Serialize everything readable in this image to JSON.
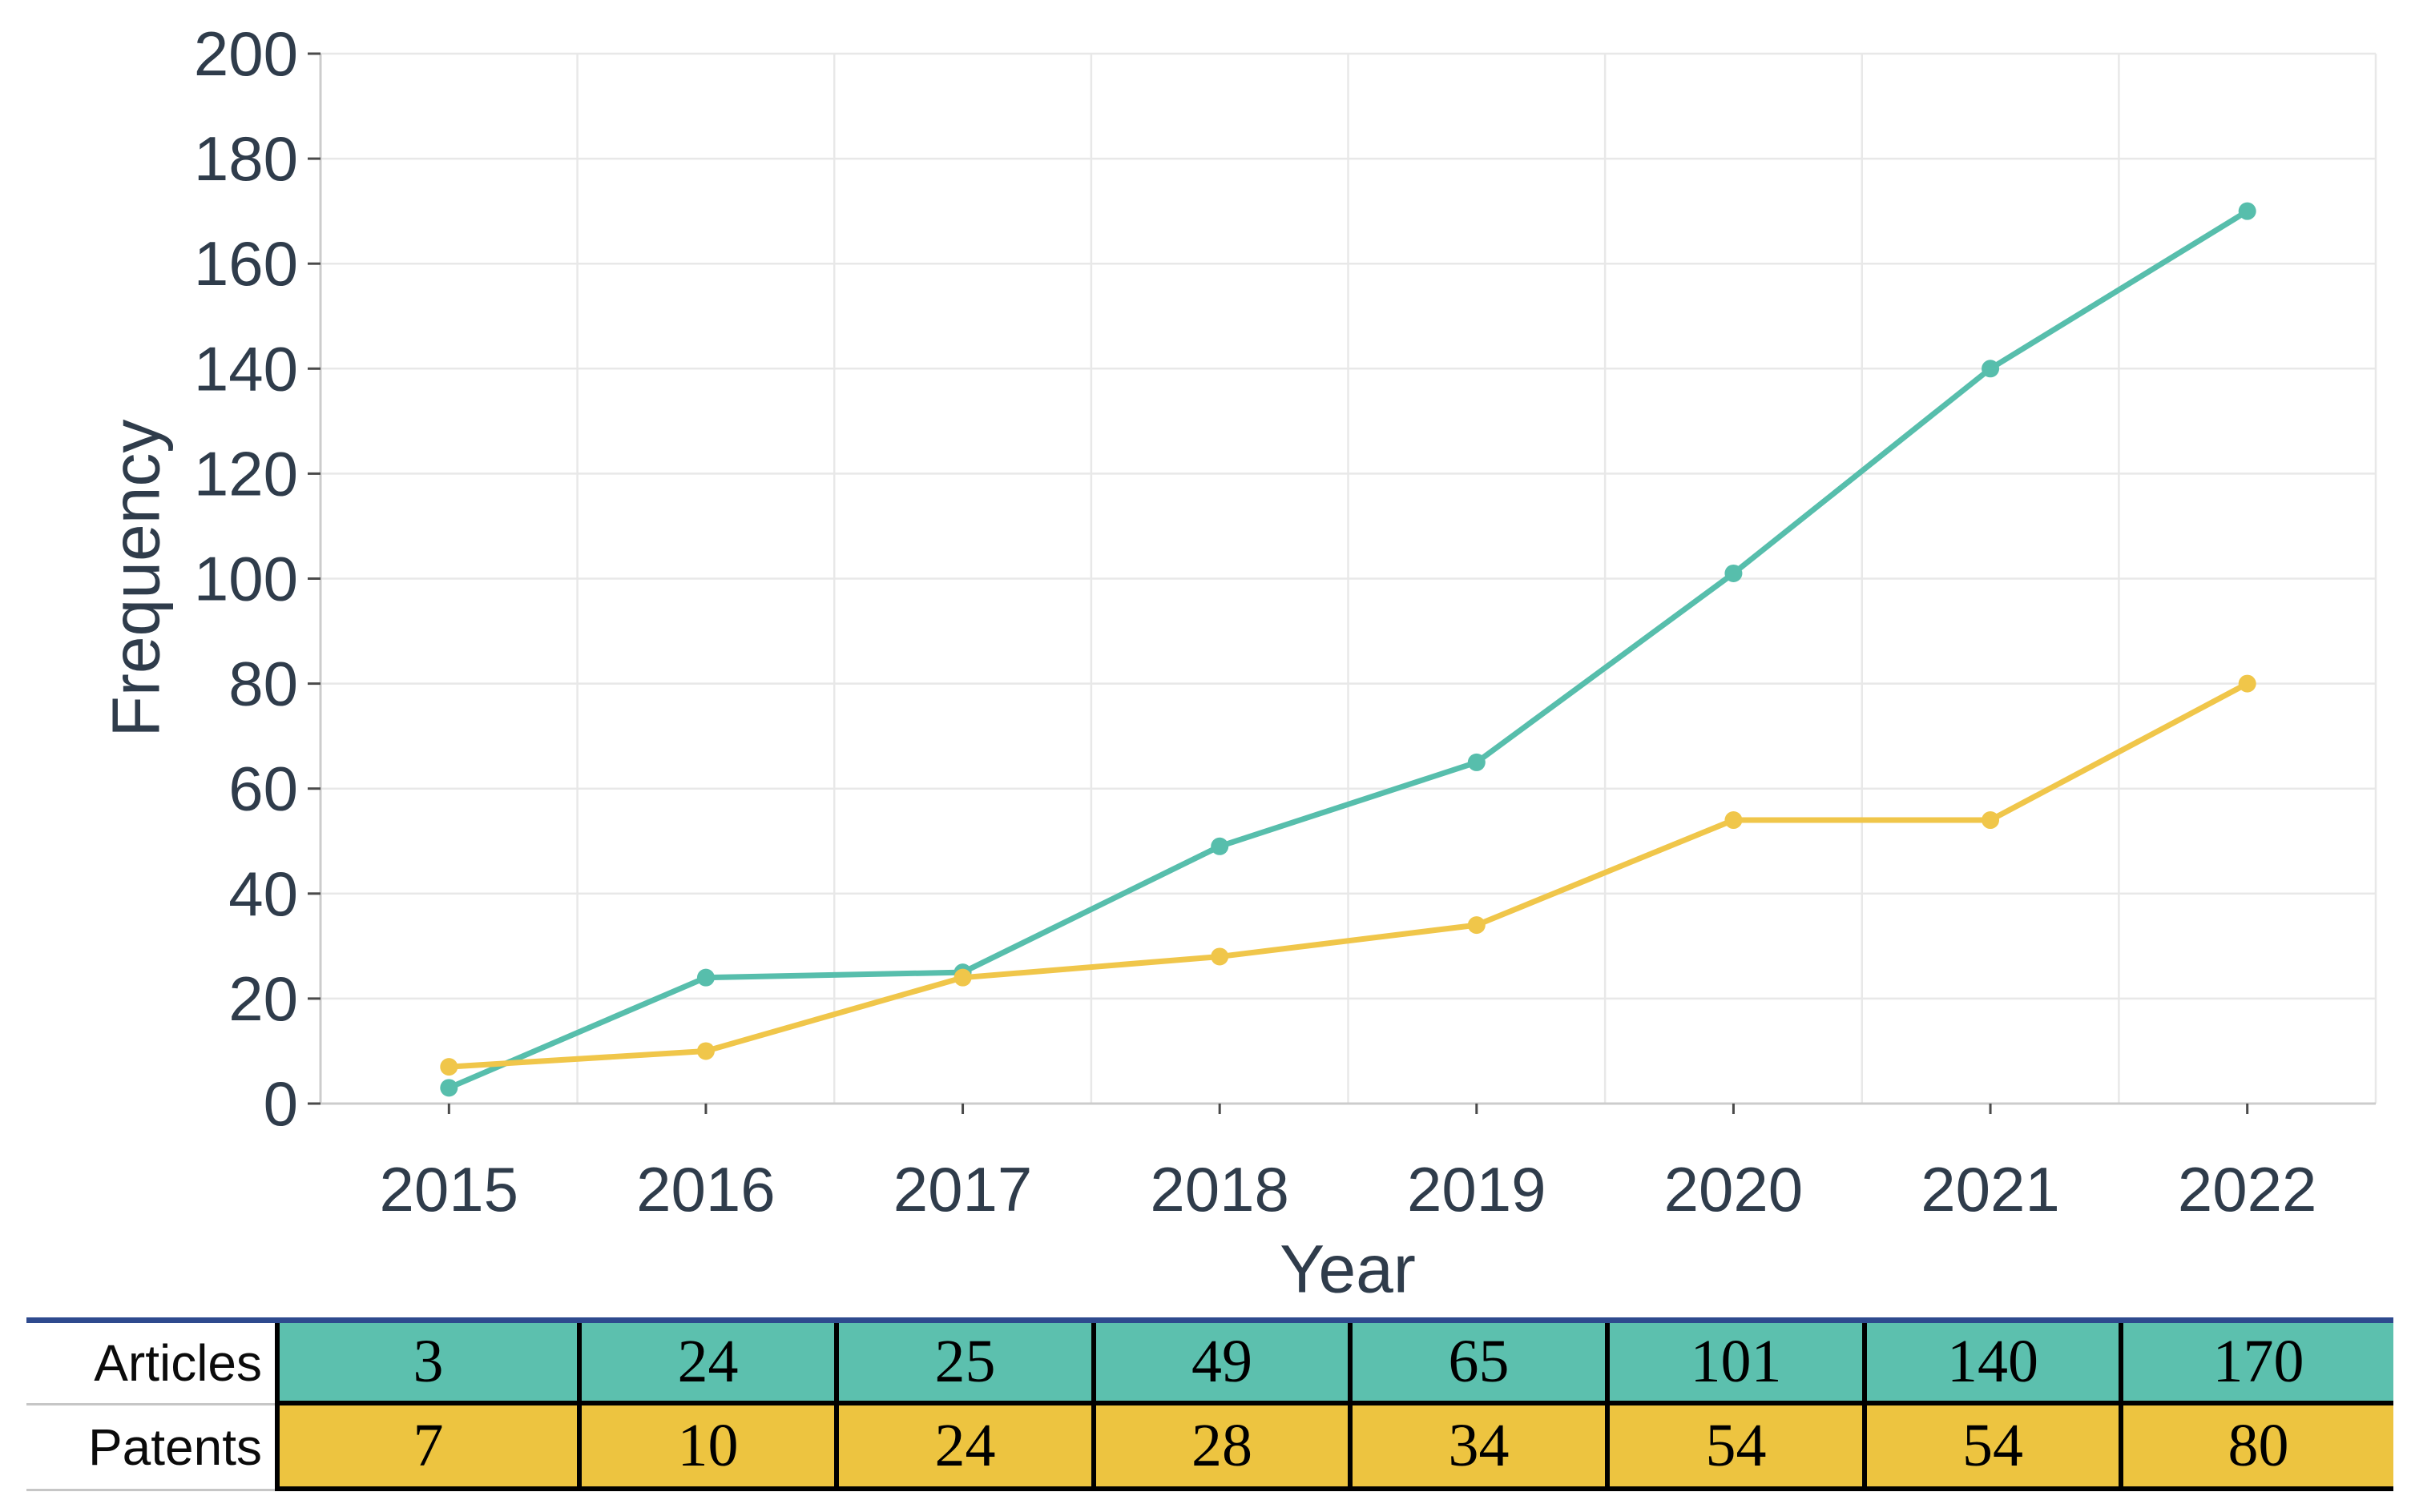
{
  "chart_data": {
    "type": "line",
    "title": "",
    "xlabel": "Year",
    "ylabel": "Frequency",
    "categories": [
      "2015",
      "2016",
      "2017",
      "2018",
      "2019",
      "2020",
      "2021",
      "2022"
    ],
    "series": [
      {
        "name": "Articles",
        "color": "#57beac",
        "values": [
          3,
          24,
          25,
          49,
          65,
          101,
          140,
          170
        ]
      },
      {
        "name": "Patents",
        "color": "#f0c64a",
        "values": [
          7,
          10,
          24,
          28,
          34,
          54,
          54,
          80
        ]
      }
    ],
    "ylim": [
      0,
      200
    ],
    "ytick_step": 20,
    "yticks": [
      0,
      20,
      40,
      60,
      80,
      100,
      120,
      140,
      160,
      180,
      200
    ],
    "grid": true,
    "legend": "none",
    "marker": "circle"
  },
  "table": {
    "top_border_color": "#2e4a8e",
    "rows": [
      {
        "label": "Articles",
        "color": "#5cc0ae",
        "values": [
          "3",
          "24",
          "25",
          "49",
          "65",
          "101",
          "140",
          "170"
        ]
      },
      {
        "label": "Patents",
        "color": "#edc440",
        "values": [
          "7",
          "10",
          "24",
          "28",
          "34",
          "54",
          "54",
          "80"
        ]
      }
    ]
  },
  "colors": {
    "axis_text": "#2f3c4b",
    "gridline": "#e8e8e8",
    "axis_line": "#cccccc",
    "tick_mark": "#4a4a4a",
    "cell_border": "#000000",
    "label_separator": "#c6c6c6"
  }
}
